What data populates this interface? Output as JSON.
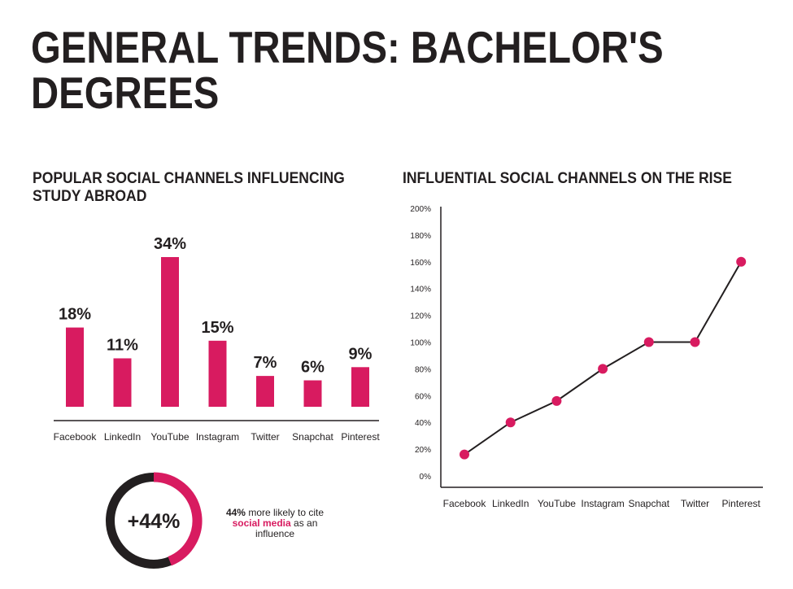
{
  "page": {
    "title": "GENERAL TRENDS: BACHELOR'S DEGREES"
  },
  "colors": {
    "accent": "#d81b60",
    "dark": "#231f20"
  },
  "chart_data": [
    {
      "type": "bar",
      "title": "POPULAR SOCIAL CHANNELS INFLUENCING STUDY ABROAD",
      "categories": [
        "Facebook",
        "LinkedIn",
        "YouTube",
        "Instagram",
        "Twitter",
        "Snapchat",
        "Pinterest"
      ],
      "values": [
        18,
        11,
        34,
        15,
        7,
        6,
        9
      ],
      "labels": [
        "18%",
        "11%",
        "34%",
        "15%",
        "7%",
        "6%",
        "9%"
      ],
      "ylim": [
        0,
        34
      ]
    },
    {
      "type": "line",
      "title": "INFLUENTIAL SOCIAL CHANNELS ON THE RISE",
      "categories": [
        "Facebook",
        "LinkedIn",
        "YouTube",
        "Instagram",
        "Snapchat",
        "Twitter",
        "Pinterest"
      ],
      "values": [
        16,
        40,
        56,
        80,
        100,
        100,
        160
      ],
      "ylim": [
        0,
        200
      ],
      "yticks": [
        0,
        20,
        40,
        60,
        80,
        100,
        120,
        140,
        160,
        180,
        200
      ],
      "ytick_labels": [
        "0%",
        "20%",
        "40%",
        "60%",
        "80%",
        "100%",
        "120%",
        "140%",
        "160%",
        "180%",
        "200%"
      ]
    }
  ],
  "donut": {
    "value": 44,
    "label": "+44%",
    "caption_pct": "44%",
    "caption_mid": "more likely to cite",
    "caption_highlight": "social media",
    "caption_tail": "as an influence"
  }
}
